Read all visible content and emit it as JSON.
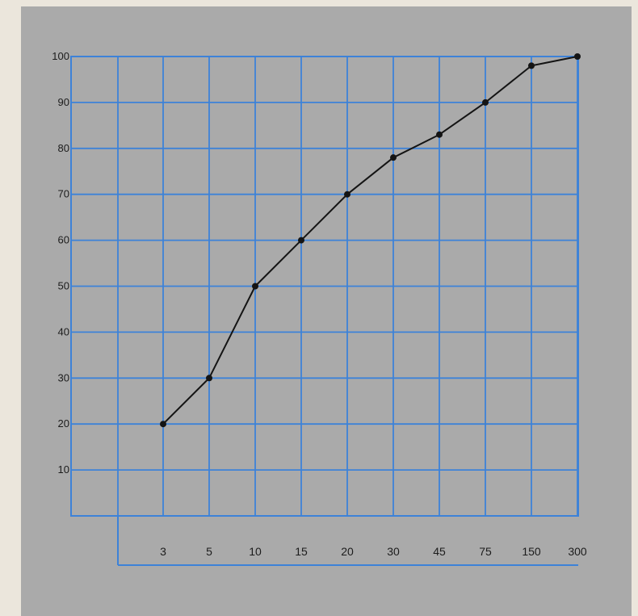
{
  "chart_data": {
    "type": "line",
    "title": "",
    "xlabel": "",
    "ylabel": "",
    "x": [
      "3",
      "5",
      "10",
      "15",
      "20",
      "30",
      "45",
      "75",
      "150",
      "300"
    ],
    "series": [
      {
        "values": [
          20,
          30,
          50,
          60,
          70,
          78,
          83,
          90,
          98,
          100
        ]
      }
    ],
    "ylim": [
      0,
      100
    ],
    "yticks": [
      "10",
      "20",
      "30",
      "40",
      "50",
      "60",
      "70",
      "80",
      "90",
      "100"
    ],
    "x_scale": "categorical (unevenly spaced tick labels)",
    "grid": true,
    "legend": "none",
    "colors": {
      "background": "#aaaaaa",
      "grid": "#3d82d8",
      "line": "#141414",
      "marker": "#141414"
    }
  }
}
